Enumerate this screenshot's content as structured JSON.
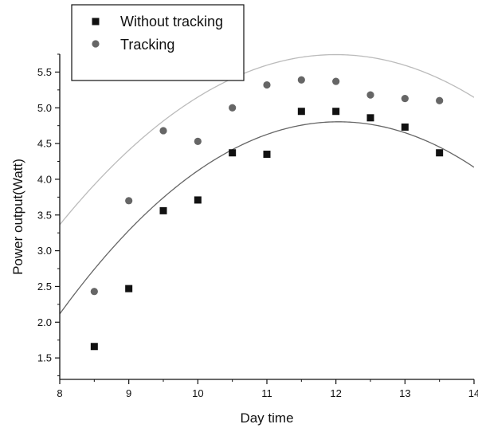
{
  "chart_data": {
    "type": "scatter",
    "title": "",
    "xlabel": "Day time",
    "ylabel": "Power output(Watt)",
    "xlim": [
      8,
      14
    ],
    "ylim": [
      1.2,
      5.75
    ],
    "xticks": [
      8,
      9,
      10,
      11,
      12,
      13,
      14
    ],
    "yticks": [
      1.5,
      2.0,
      2.5,
      3.0,
      3.5,
      4.0,
      4.5,
      5.0,
      5.5
    ],
    "ytick_labels": [
      "1.5",
      "2.0",
      "2.5",
      "3.0",
      "3.5",
      "4.0",
      "4.5",
      "5.0",
      "5.5"
    ],
    "grid": false,
    "legend_position": "top-left",
    "series": [
      {
        "name": "Without tracking",
        "marker": "square",
        "color": "#111111",
        "x": [
          8.5,
          9.0,
          9.5,
          10.0,
          10.5,
          11.0,
          11.5,
          12.0,
          12.5,
          13.0,
          13.5
        ],
        "y": [
          1.66,
          2.47,
          3.56,
          3.71,
          4.37,
          4.35,
          4.95,
          4.95,
          4.86,
          4.73,
          4.37
        ],
        "fit": {
          "type": "quadratic",
          "color": "#666666",
          "xrange": [
            8,
            14
          ],
          "coefficients": [
            -19.1,
            3.972,
            -0.165
          ]
        }
      },
      {
        "name": "Tracking",
        "marker": "circle",
        "color": "#666666",
        "x": [
          8.5,
          9.0,
          9.5,
          10.0,
          10.5,
          11.0,
          11.5,
          12.0,
          12.5,
          13.0,
          13.5
        ],
        "y": [
          2.43,
          3.7,
          4.68,
          4.53,
          5.0,
          5.32,
          5.39,
          5.37,
          5.18,
          5.13,
          5.1
        ],
        "fit": {
          "type": "quadratic",
          "color": "#bbbbbb",
          "xrange": [
            8,
            14
          ],
          "coefficients": [
            -15.7,
            3.575,
            -0.149
          ]
        }
      }
    ]
  }
}
